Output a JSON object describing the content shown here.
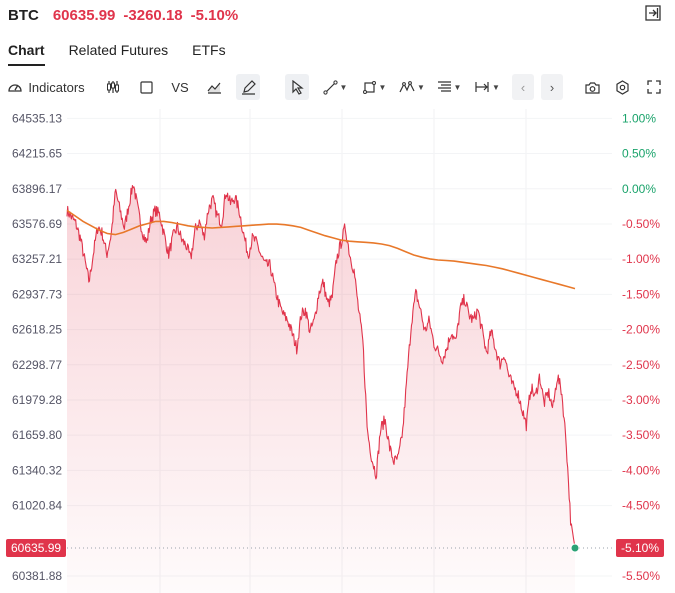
{
  "header": {
    "symbol": "BTC",
    "price": "60635.99",
    "change": "-3260.18",
    "change_pct": "-5.10%"
  },
  "tabs": [
    "Chart",
    "Related Futures",
    "ETFs"
  ],
  "toolbar": {
    "indicators_label": "Indicators",
    "vs_label": "VS",
    "icons": [
      "indicators-icon",
      "candlestick-icon",
      "square-icon",
      "vs",
      "area-chart-icon",
      "pen-icon",
      "cursor-icon",
      "line-tool-icon",
      "shape-tool-icon",
      "pattern-tool-icon",
      "text-tool-icon",
      "measure-tool-icon",
      "back-icon",
      "forward-icon",
      "camera-icon",
      "settings-icon",
      "fullscreen-icon"
    ]
  },
  "colors": {
    "price_line": "#e0344b",
    "average_line": "#e8782a",
    "positive": "#1aa36b",
    "negative": "#e0344b"
  },
  "chart_data": {
    "type": "area",
    "title": "",
    "xlabel": "",
    "ylabel": "",
    "ylim": [
      60300,
      64620
    ],
    "left_ticks": [
      "64535.13",
      "64215.65",
      "63896.17",
      "63576.69",
      "63257.21",
      "62937.73",
      "62618.25",
      "62298.77",
      "61979.28",
      "61659.80",
      "61340.32",
      "61020.84",
      "60381.88"
    ],
    "left_tick_values": [
      64535.13,
      64215.65,
      63896.17,
      63576.69,
      63257.21,
      62937.73,
      62618.25,
      62298.77,
      61979.28,
      61659.8,
      61340.32,
      61020.84,
      60381.88
    ],
    "right_ticks": [
      "1.00%",
      "0.50%",
      "0.00%",
      "-0.50%",
      "-1.00%",
      "-1.50%",
      "-2.00%",
      "-2.50%",
      "-3.00%",
      "-3.50%",
      "-4.00%",
      "-4.50%",
      "-5.50%"
    ],
    "current_price_label": "60635.99",
    "current_pct_label": "-5.10%",
    "current_price": 60635.99,
    "series": [
      {
        "values": [
          63700,
          63640,
          63580,
          63450,
          63250,
          63050,
          63320,
          63560,
          63490,
          63300,
          63480,
          63880,
          63700,
          63540,
          63750,
          63950,
          63720,
          63520,
          63400,
          63620,
          63700,
          63660,
          63480,
          63300,
          63460,
          63550,
          63430,
          63380,
          63260,
          63520,
          63600,
          63460,
          63710,
          63800,
          63650,
          63590,
          63880,
          63760,
          63820,
          63700,
          63480,
          63300,
          63450,
          63400,
          63280,
          63200,
          63200,
          63000,
          62850,
          62750,
          62700,
          62580,
          62450,
          62750,
          62800,
          62600,
          62700,
          62950,
          63050,
          62850,
          62900,
          63250,
          63400,
          63550,
          63300,
          63150,
          62800,
          62500,
          61700,
          61450,
          61300,
          61720,
          61800,
          61550,
          61420,
          61450,
          61700,
          62200,
          62700,
          62950,
          62800,
          62600,
          62700,
          62500,
          62420,
          62350,
          62450,
          62600,
          62500,
          62800,
          62900,
          62750,
          62700,
          62800,
          62600,
          62400,
          62600,
          62450,
          62300,
          62400,
          62200,
          62100,
          62050,
          61900,
          61750,
          62100,
          62000,
          62200,
          61950,
          62050,
          61900,
          62200,
          62050,
          61600,
          60900,
          60636
        ],
        "color": "#e0344b"
      },
      {
        "values": [
          63700,
          63650,
          63600,
          63560,
          63520,
          63490,
          63480,
          63500,
          63530,
          63560,
          63580,
          63600,
          63600,
          63590,
          63575,
          63560,
          63550,
          63545,
          63540,
          63545,
          63550,
          63555,
          63560,
          63565,
          63570,
          63575,
          63575,
          63570,
          63560,
          63545,
          63520,
          63495,
          63470,
          63450,
          63430,
          63420,
          63415,
          63410,
          63405,
          63395,
          63380,
          63355,
          63325,
          63295,
          63275,
          63260,
          63250,
          63245,
          63240,
          63230,
          63220,
          63210,
          63200,
          63185,
          63170,
          63150,
          63130,
          63110,
          63090,
          63070,
          63050,
          63030,
          63010,
          62990
        ],
        "color": "#e8782a"
      }
    ]
  }
}
